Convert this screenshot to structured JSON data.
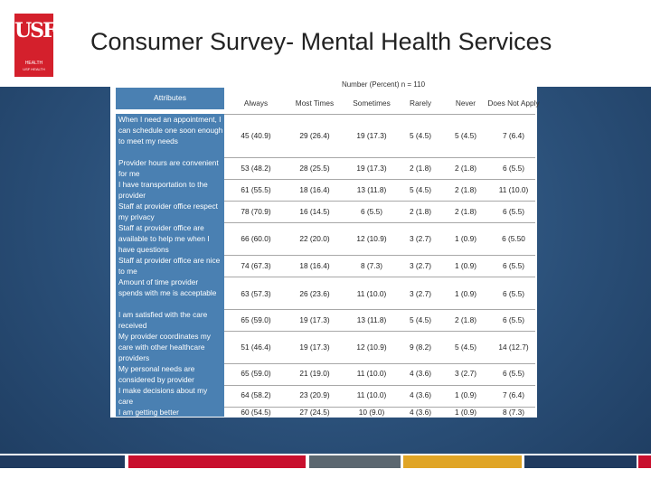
{
  "logo": {
    "mark": "USF",
    "line1": "HEALTH",
    "line2": "USF HEALTH"
  },
  "title": "Consumer Survey- Mental Health Services",
  "table": {
    "group_header": "Number (Percent) n = 110",
    "attr_header": "Attributes",
    "columns": [
      "Always",
      "Most Times",
      "Sometimes",
      "Rarely",
      "Never",
      "Does Not Apply"
    ],
    "rows": [
      {
        "attribute": "When I need an appointment, I can schedule one soon enough to meet my needs",
        "values": [
          "45 (40.9)",
          "29 (26.4)",
          "19 (17.3)",
          "5 (4.5)",
          "5 (4.5)",
          "7 (6.4)"
        ]
      },
      {
        "attribute": "Provider hours are convenient for me",
        "values": [
          "53 (48.2)",
          "28 (25.5)",
          "19 (17.3)",
          "2 (1.8)",
          "2 (1.8)",
          "6 (5.5)"
        ]
      },
      {
        "attribute": "I have transportation to the provider",
        "values": [
          "61 (55.5)",
          "18 (16.4)",
          "13 (11.8)",
          "5 (4.5)",
          "2 (1.8)",
          "11 (10.0)"
        ]
      },
      {
        "attribute": "Staff at provider office respect my privacy",
        "values": [
          "78 (70.9)",
          "16 (14.5)",
          "6 (5.5)",
          "2 (1.8)",
          "2 (1.8)",
          "6 (5.5)"
        ]
      },
      {
        "attribute": "Staff at provider office are available to help me when I have questions",
        "values": [
          "66 (60.0)",
          "22 (20.0)",
          "12 (10.9)",
          "3 (2.7)",
          "1 (0.9)",
          "6 (5.50"
        ]
      },
      {
        "attribute": "Staff at provider office are nice to me",
        "values": [
          "74 (67.3)",
          "18 (16.4)",
          "8 (7.3)",
          "3 (2.7)",
          "1 (0.9)",
          "6 (5.5)"
        ]
      },
      {
        "attribute": "Amount of time provider spends with me is acceptable",
        "values": [
          "63 (57.3)",
          "26 (23.6)",
          "11 (10.0)",
          "3 (2.7)",
          "1 (0.9)",
          "6 (5.5)"
        ]
      },
      {
        "attribute": "I am satisfied with the care received",
        "values": [
          "65 (59.0)",
          "19 (17.3)",
          "13 (11.8)",
          "5 (4.5)",
          "2 (1.8)",
          "6 (5.5)"
        ]
      },
      {
        "attribute": "My provider coordinates my care with other healthcare providers",
        "values": [
          "51 (46.4)",
          "19 (17.3)",
          "12 (10.9)",
          "9 (8.2)",
          "5 (4.5)",
          "14 (12.7)"
        ]
      },
      {
        "attribute": "My personal needs are considered by provider",
        "values": [
          "65 (59.0)",
          "21 (19.0)",
          "11 (10.0)",
          "4 (3.6)",
          "3 (2.7)",
          "6 (5.5)"
        ]
      },
      {
        "attribute": "I make decisions about my care",
        "values": [
          "64 (58.2)",
          "23 (20.9)",
          "11 (10.0)",
          "4 (3.6)",
          "1 (0.9)",
          "7 (6.4)"
        ]
      },
      {
        "attribute": "I am getting better",
        "values": [
          "60 (54.5)",
          "27 (24.5)",
          "10 (9.0)",
          "4 (3.6)",
          "1 (0.9)",
          "8 (7.3)"
        ]
      }
    ]
  },
  "footer_colors": [
    "#1f3a5f",
    "#c8102e",
    "#5b6770",
    "#e0a526",
    "#1f3a5f",
    "#c8102e"
  ],
  "colors": {
    "accent": "#d4202c",
    "attr_bg": "#4a80b2",
    "background": "#2a4f78"
  }
}
